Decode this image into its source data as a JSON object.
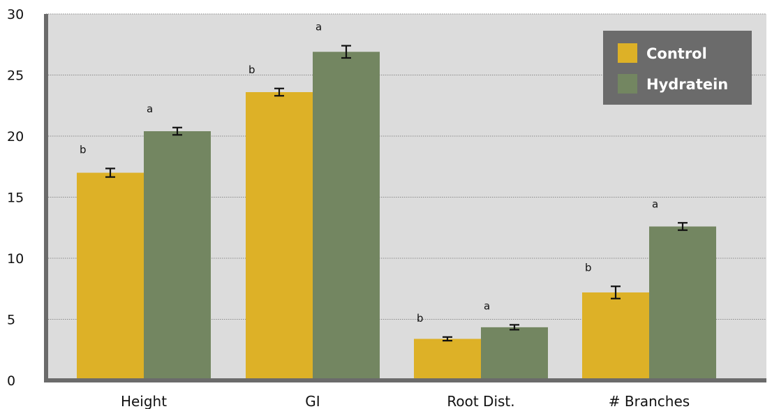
{
  "chart_data": {
    "type": "bar",
    "title": "",
    "xlabel": "",
    "ylabel": "",
    "categories": [
      "Height",
      "GI",
      "Root Dist.",
      "# Branches"
    ],
    "ylim": [
      0,
      30
    ],
    "yticks": [
      0,
      5,
      10,
      15,
      20,
      25,
      30
    ],
    "grid": true,
    "legend_position": "top-right",
    "series": [
      {
        "name": "Control",
        "color": "#ddb127",
        "values": [
          17.0,
          23.6,
          3.4,
          7.2
        ],
        "errors": [
          0.35,
          0.3,
          0.15,
          0.5
        ],
        "significance": [
          "b",
          "b",
          "b",
          "b"
        ]
      },
      {
        "name": "Hydratein",
        "color": "#738661",
        "values": [
          20.4,
          26.9,
          4.35,
          12.6
        ],
        "errors": [
          0.3,
          0.5,
          0.2,
          0.3
        ],
        "significance": [
          "a",
          "a",
          "a",
          "a"
        ]
      }
    ],
    "colors": {
      "plot_background": "#dcdcdc",
      "axis": "#6b6b6b",
      "grid": "#8a8a8a",
      "legend_background": "#6b6b6b"
    }
  }
}
